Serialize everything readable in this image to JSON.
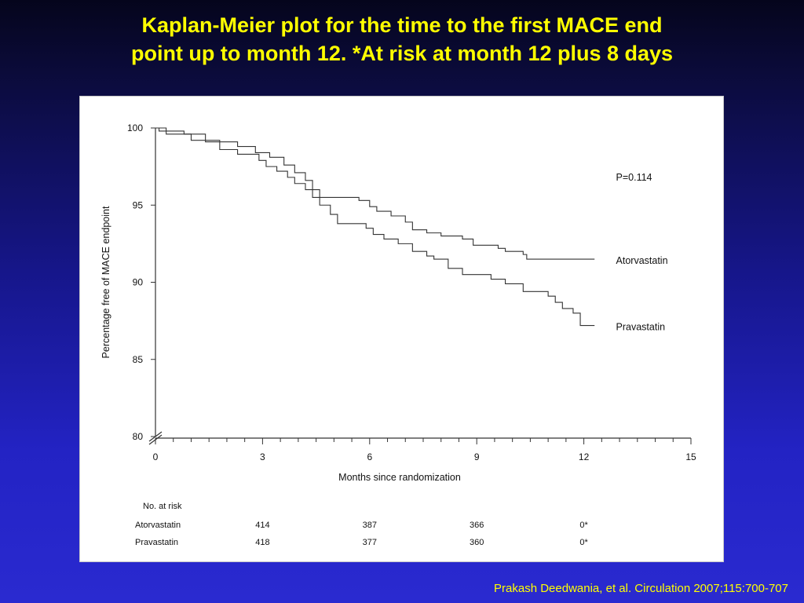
{
  "slide": {
    "title_line1": "Kaplan-Meier plot for the time to the first MACE end",
    "title_line2": "point up to month 12. *At risk at month 12 plus 8 days",
    "citation": "Prakash Deedwania, et al. Circulation 2007;115:700-707"
  },
  "colors": {
    "title": "#ffff00",
    "background_top": "#05051c",
    "background_bottom": "#2a2ad0",
    "line": "#333333",
    "panel": "#ffffff"
  },
  "chart_data": {
    "type": "line",
    "title": "",
    "xlabel": "Months since randomization",
    "ylabel": "Percentage free of MACE endpoint",
    "xlim": [
      0,
      15
    ],
    "ylim": [
      80,
      100
    ],
    "xticks": [
      0,
      3,
      6,
      9,
      12,
      15
    ],
    "yticks": [
      80,
      85,
      90,
      95,
      100
    ],
    "axis_break": true,
    "grid": false,
    "p_value_text": "P=0.114",
    "series": [
      {
        "name": "Atorvastatin",
        "step": true,
        "points": [
          [
            0,
            100
          ],
          [
            0.1,
            99.8
          ],
          [
            0.8,
            99.6
          ],
          [
            1.4,
            99.1
          ],
          [
            2.3,
            98.8
          ],
          [
            2.8,
            98.4
          ],
          [
            3.2,
            98.1
          ],
          [
            3.6,
            97.6
          ],
          [
            3.9,
            97.1
          ],
          [
            4.2,
            96.6
          ],
          [
            4.4,
            96.0
          ],
          [
            4.6,
            95.5
          ],
          [
            5.3,
            95.5
          ],
          [
            5.7,
            95.3
          ],
          [
            6.0,
            94.9
          ],
          [
            6.2,
            94.6
          ],
          [
            6.6,
            94.3
          ],
          [
            7.0,
            93.9
          ],
          [
            7.2,
            93.4
          ],
          [
            7.6,
            93.2
          ],
          [
            8.0,
            93.0
          ],
          [
            8.6,
            92.8
          ],
          [
            8.9,
            92.4
          ],
          [
            9.6,
            92.2
          ],
          [
            9.8,
            92.0
          ],
          [
            10.3,
            91.8
          ],
          [
            10.4,
            91.5
          ],
          [
            12.3,
            91.5
          ]
        ]
      },
      {
        "name": "Pravastatin",
        "step": true,
        "points": [
          [
            0,
            100
          ],
          [
            0.3,
            99.6
          ],
          [
            1.0,
            99.2
          ],
          [
            1.8,
            98.6
          ],
          [
            2.3,
            98.3
          ],
          [
            2.9,
            97.9
          ],
          [
            3.1,
            97.5
          ],
          [
            3.4,
            97.2
          ],
          [
            3.7,
            96.8
          ],
          [
            3.9,
            96.4
          ],
          [
            4.2,
            96.0
          ],
          [
            4.4,
            95.5
          ],
          [
            4.6,
            95.0
          ],
          [
            4.9,
            94.4
          ],
          [
            5.1,
            93.8
          ],
          [
            5.9,
            93.5
          ],
          [
            6.1,
            93.1
          ],
          [
            6.4,
            92.8
          ],
          [
            6.8,
            92.5
          ],
          [
            7.2,
            92.0
          ],
          [
            7.6,
            91.7
          ],
          [
            7.8,
            91.5
          ],
          [
            8.2,
            90.9
          ],
          [
            8.6,
            90.5
          ],
          [
            9.4,
            90.2
          ],
          [
            9.8,
            89.9
          ],
          [
            10.3,
            89.4
          ],
          [
            11.0,
            89.1
          ],
          [
            11.2,
            88.7
          ],
          [
            11.4,
            88.3
          ],
          [
            11.7,
            88.0
          ],
          [
            11.9,
            87.2
          ],
          [
            12.3,
            87.2
          ]
        ]
      }
    ],
    "at_risk": {
      "header": "No. at risk",
      "timepoints": [
        3,
        6,
        9,
        12
      ],
      "rows": [
        {
          "label": "Atorvastatin",
          "values": [
            "414",
            "387",
            "366",
            "0*"
          ]
        },
        {
          "label": "Pravastatin",
          "values": [
            "418",
            "377",
            "360",
            "0*"
          ]
        }
      ]
    }
  }
}
